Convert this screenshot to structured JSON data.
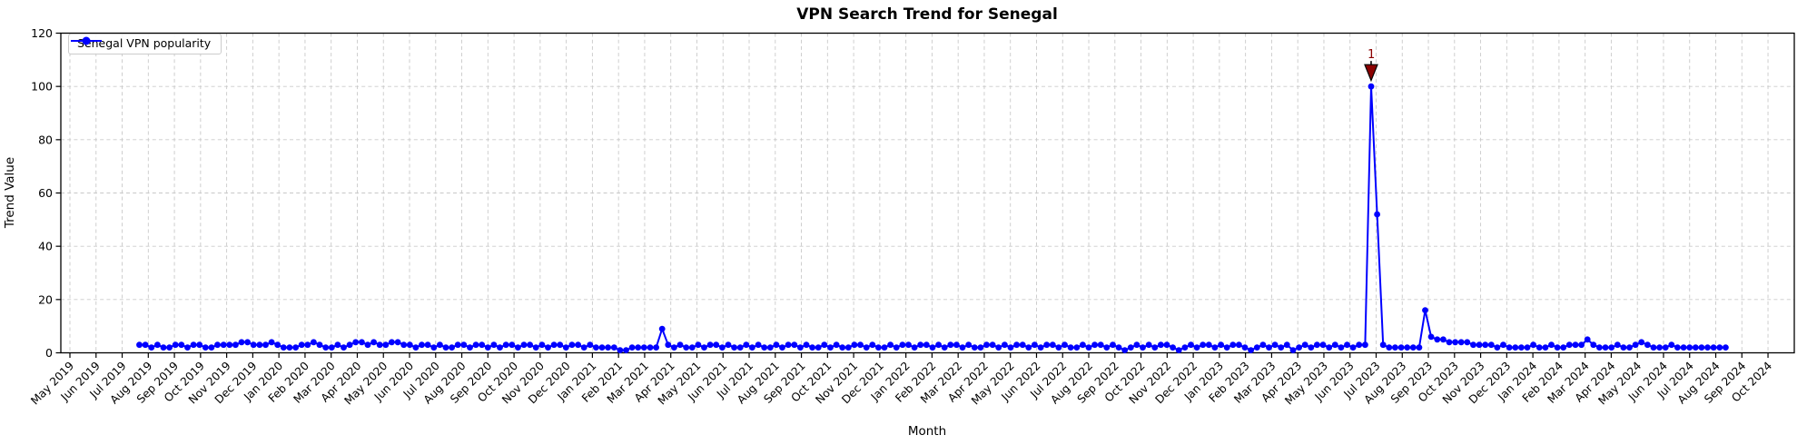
{
  "figure": {
    "background": "#ffffff",
    "text_color": "#000000",
    "grid_color": "#c9c9c9",
    "spine_color": "#000000"
  },
  "chart_data": {
    "type": "line",
    "title": "VPN Search Trend for Senegal",
    "xlabel": "Month",
    "ylabel": "Trend Value",
    "ylim": [
      0,
      120
    ],
    "yticks": [
      0,
      20,
      40,
      60,
      80,
      100,
      120
    ],
    "grid": true,
    "grid_style": "dashed",
    "legend_position": "upper-left",
    "x_tick_labels": [
      "May 2019",
      "Jun 2019",
      "Jul 2019",
      "Aug 2019",
      "Sep 2019",
      "Oct 2019",
      "Nov 2019",
      "Dec 2019",
      "Jan 2020",
      "Feb 2020",
      "Mar 2020",
      "Apr 2020",
      "May 2020",
      "Jun 2020",
      "Jul 2020",
      "Aug 2020",
      "Sep 2020",
      "Oct 2020",
      "Nov 2020",
      "Dec 2020",
      "Jan 2021",
      "Feb 2021",
      "Mar 2021",
      "Apr 2021",
      "May 2021",
      "Jun 2021",
      "Jul 2021",
      "Aug 2021",
      "Sep 2021",
      "Oct 2021",
      "Nov 2021",
      "Dec 2021",
      "Jan 2022",
      "Feb 2022",
      "Mar 2022",
      "Apr 2022",
      "May 2022",
      "Jun 2022",
      "Jul 2022",
      "Aug 2022",
      "Sep 2022",
      "Oct 2022",
      "Nov 2022",
      "Dec 2022",
      "Jan 2023",
      "Feb 2023",
      "Mar 2023",
      "Apr 2023",
      "May 2023",
      "Jun 2023",
      "Jul 2023",
      "Aug 2023",
      "Sep 2023",
      "Oct 2023",
      "Nov 2023",
      "Dec 2023",
      "Jan 2024",
      "Feb 2024",
      "Mar 2024",
      "Apr 2024",
      "May 2024",
      "Jun 2024",
      "Jul 2024",
      "Aug 2024",
      "Sep 2024",
      "Oct 2024"
    ],
    "x_layout": {
      "first_point_month_index": 2.66,
      "points_per_month": 4.348
    },
    "series": [
      {
        "name": "Senegal VPN popularity",
        "color": "#0000ff",
        "marker": "circle",
        "cadence": "weekly",
        "values": [
          3,
          3,
          2,
          3,
          2,
          2,
          3,
          3,
          2,
          3,
          3,
          2,
          2,
          3,
          3,
          3,
          3,
          4,
          4,
          3,
          3,
          3,
          4,
          3,
          2,
          2,
          2,
          3,
          3,
          4,
          3,
          2,
          2,
          3,
          2,
          3,
          4,
          4,
          3,
          4,
          3,
          3,
          4,
          4,
          3,
          3,
          2,
          3,
          3,
          2,
          3,
          2,
          2,
          3,
          3,
          2,
          3,
          3,
          2,
          3,
          2,
          3,
          3,
          2,
          3,
          3,
          2,
          3,
          2,
          3,
          3,
          2,
          3,
          3,
          2,
          3,
          2,
          2,
          2,
          2,
          1,
          1,
          2,
          2,
          2,
          2,
          2,
          9,
          3,
          2,
          3,
          2,
          2,
          3,
          2,
          3,
          3,
          2,
          3,
          2,
          2,
          3,
          2,
          3,
          2,
          2,
          3,
          2,
          3,
          3,
          2,
          3,
          2,
          2,
          3,
          2,
          3,
          2,
          2,
          3,
          3,
          2,
          3,
          2,
          2,
          3,
          2,
          3,
          3,
          2,
          3,
          3,
          2,
          3,
          2,
          3,
          3,
          2,
          3,
          2,
          2,
          3,
          3,
          2,
          3,
          2,
          3,
          3,
          2,
          3,
          2,
          3,
          3,
          2,
          3,
          2,
          2,
          3,
          2,
          3,
          3,
          2,
          3,
          2,
          1,
          2,
          3,
          2,
          3,
          2,
          3,
          3,
          2,
          1,
          2,
          3,
          2,
          3,
          3,
          2,
          3,
          2,
          3,
          3,
          2,
          1,
          2,
          3,
          2,
          3,
          2,
          3,
          1,
          2,
          3,
          2,
          3,
          3,
          2,
          3,
          2,
          3,
          2,
          3,
          3,
          100,
          52,
          3,
          2,
          2,
          2,
          2,
          2,
          2,
          16,
          6,
          5,
          5,
          4,
          4,
          4,
          4,
          3,
          3,
          3,
          3,
          2,
          3,
          2,
          2,
          2,
          2,
          3,
          2,
          2,
          3,
          2,
          2,
          3,
          3,
          3,
          5,
          3,
          2,
          2,
          2,
          3,
          2,
          2,
          3,
          4,
          3,
          2,
          2,
          2,
          3,
          2,
          2,
          2,
          2,
          2,
          2,
          2,
          2,
          2
        ]
      }
    ],
    "annotations": [
      {
        "text": "1",
        "point_index": 205,
        "value": 100,
        "marker": "triangle-down",
        "color": "#8b0000"
      }
    ]
  }
}
